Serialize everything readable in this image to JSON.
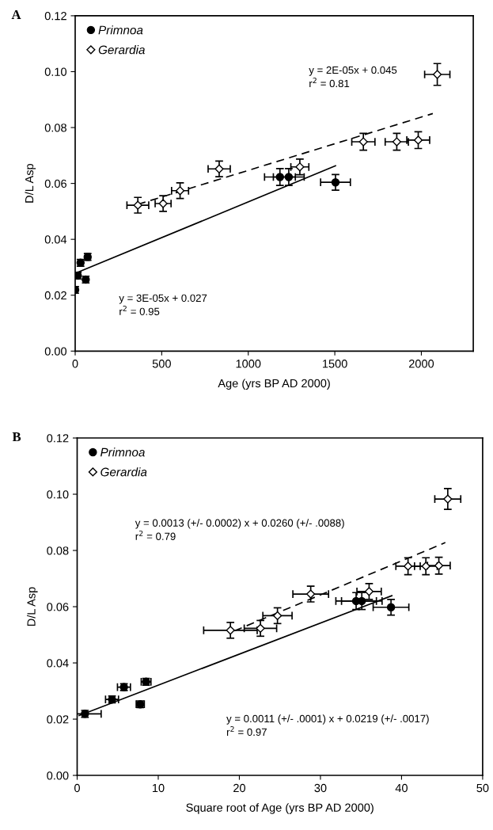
{
  "chart_data": [
    {
      "type": "scatter",
      "title": "A",
      "xlabel": "Age (yrs BP AD 2000)",
      "ylabel": "D/L Asp",
      "xlim": [
        0,
        2300
      ],
      "xticks": [
        0,
        500,
        1000,
        1500,
        2000
      ],
      "ylim": [
        0,
        0.12
      ],
      "yticks": [
        {
          "value": 0,
          "label": "0.00"
        },
        {
          "value": 0.02,
          "label": "0.02"
        },
        {
          "value": 0.04,
          "label": "0.04"
        },
        {
          "value": 0.06,
          "label": "0.06"
        },
        {
          "value": 0.08,
          "label": "0.08"
        },
        {
          "value": 0.1,
          "label": "0.10"
        },
        {
          "value": 0.12,
          "label": "0.12"
        }
      ],
      "legend": "top left",
      "grid": false,
      "series": [
        {
          "name": "Primnoa",
          "marker": "circle",
          "color": "#000000",
          "x": [
            0,
            15,
            31,
            72,
            61,
            1183,
            1234,
            1504
          ],
          "values": [
            0.0219,
            0.027,
            0.0316,
            0.0337,
            0.0256,
            0.0623,
            0.0623,
            0.0604
          ],
          "xerrors": [
            10,
            10,
            10,
            10,
            10,
            89,
            89,
            86
          ],
          "errors": [
            0.0012,
            0.0012,
            0.0012,
            0.0012,
            0.0012,
            0.003,
            0.003,
            0.0028
          ]
        },
        {
          "name": "Gerardia",
          "marker": "diamond",
          "color": "#000000",
          "x": [
            362,
            508,
            606,
            832,
            1298,
            1665,
            1858,
            1982,
            2092
          ],
          "values": [
            0.0522,
            0.0528,
            0.0574,
            0.0652,
            0.0659,
            0.0749,
            0.0749,
            0.0755,
            0.099
          ],
          "xerrors": [
            63,
            46,
            49,
            64,
            52,
            67,
            67,
            66,
            73
          ],
          "errors": [
            0.0028,
            0.0028,
            0.0028,
            0.0028,
            0.0028,
            0.003,
            0.003,
            0.003,
            0.0039
          ]
        },
        {
          "type": "line",
          "line_style": "solid",
          "color": "#000000",
          "x": [
            0,
            1504
          ],
          "values": [
            0.0278,
            0.0663
          ]
        },
        {
          "type": "line",
          "line_style": "dashed",
          "color": "#000000",
          "x": [
            362,
            2066
          ],
          "values": [
            0.0525,
            0.085
          ]
        }
      ],
      "annotations": [
        "y = 2E-05x + 0.045\nr$^{2}$ = 0.81",
        "y = 3E-05x + 0.027\nr$^{2}$ = 0.95"
      ]
    },
    {
      "type": "scatter",
      "title": "B",
      "xlabel": "Square root of Age (yrs BP AD 2000)",
      "ylabel": "D/L Asp",
      "xlim": [
        0,
        50
      ],
      "xticks": [
        0,
        10,
        20,
        30,
        40,
        50
      ],
      "ylim": [
        0,
        0.12
      ],
      "yticks": [
        {
          "value": 0,
          "label": "0.00"
        },
        {
          "value": 0.02,
          "label": "0.02"
        },
        {
          "value": 0.04,
          "label": "0.04"
        },
        {
          "value": 0.06,
          "label": "0.06"
        },
        {
          "value": 0.08,
          "label": "0.08"
        },
        {
          "value": 0.1,
          "label": "0.10"
        },
        {
          "value": 0.12,
          "label": "0.12"
        }
      ],
      "legend": "top left",
      "grid": false,
      "series": [
        {
          "name": "Primnoa",
          "marker": "circle",
          "color": "#000000",
          "x": [
            0.96,
            4.3,
            5.77,
            8.5,
            7.78,
            34.4,
            35.1,
            38.7
          ],
          "values": [
            0.0219,
            0.027,
            0.0314,
            0.0333,
            0.0253,
            0.062,
            0.062,
            0.0598
          ],
          "xerrors": [
            2.0,
            0.8,
            0.8,
            0.6,
            0.5,
            2.5,
            2.5,
            2.2
          ],
          "errors": [
            0.0012,
            0.0012,
            0.0012,
            0.0012,
            0.0012,
            0.003,
            0.003,
            0.0028
          ]
        },
        {
          "name": "Gerardia",
          "marker": "diamond",
          "color": "#000000",
          "x": [
            18.9,
            22.6,
            24.7,
            28.8,
            36.0,
            40.8,
            43.0,
            44.6,
            45.7
          ],
          "values": [
            0.0516,
            0.0523,
            0.0568,
            0.0645,
            0.0654,
            0.0744,
            0.0744,
            0.0746,
            0.0983
          ],
          "xerrors": [
            3.3,
            2.0,
            1.8,
            2.2,
            1.5,
            1.5,
            1.4,
            1.4,
            1.6
          ],
          "errors": [
            0.0028,
            0.0028,
            0.0028,
            0.0028,
            0.0028,
            0.003,
            0.003,
            0.003,
            0.0037
          ]
        },
        {
          "type": "line",
          "line_style": "solid",
          "color": "#000000",
          "x": [
            0.25,
            38.8
          ],
          "values": [
            0.0213,
            0.0639
          ]
        },
        {
          "type": "line",
          "line_style": "dashed",
          "color": "#000000",
          "x": [
            19.4,
            45.4
          ],
          "values": [
            0.0514,
            0.0828
          ]
        }
      ],
      "annotations": [
        "y = 0.0013 (+/- 0.0002) x + 0.0260 (+/- .0088)\nr$^{2}$ = 0.79",
        "y = 0.0011 (+/- .0001) x + 0.0219 (+/- .0017)\nr$^{2}$ = 0.97"
      ]
    }
  ]
}
